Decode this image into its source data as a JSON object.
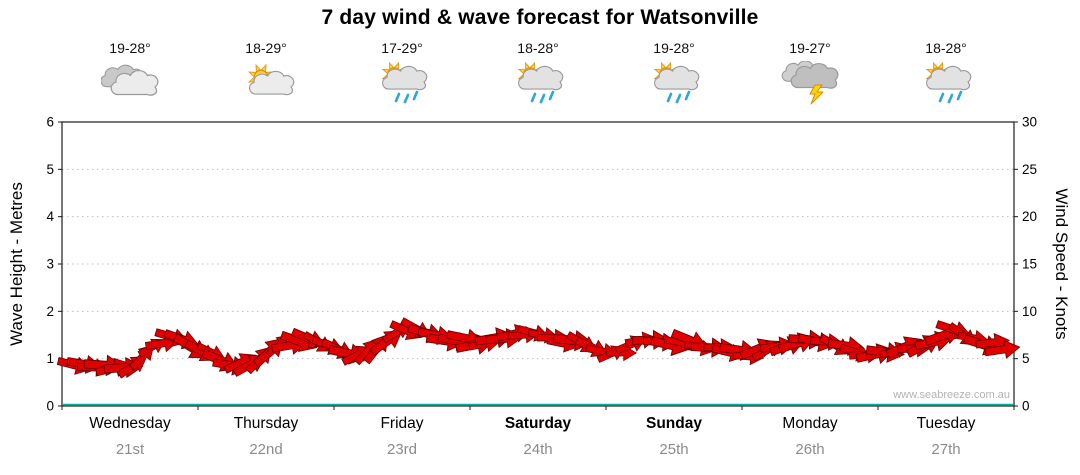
{
  "watermark": "www.seabreeze.com.au",
  "chart_data": {
    "type": "area",
    "title": "7 day wind & wave forecast for Watsonville",
    "ylabel_left": "Wave Height - Metres",
    "ylabel_right": "Wind Speed - Knots",
    "ylim_left": [
      0,
      6
    ],
    "ylim_right": [
      0,
      30
    ],
    "left_ticks": [
      0,
      1,
      2,
      3,
      4,
      5,
      6
    ],
    "right_ticks": [
      0,
      5,
      10,
      15,
      20,
      25,
      30
    ],
    "grid": "horizontal-dotted",
    "legend": "none",
    "series_color": "#e10000",
    "baseline_color": "#00b09b",
    "days": [
      {
        "name": "Wednesday",
        "date": "21st",
        "temp": "19-28°",
        "icon": "cloudy",
        "weekend": false
      },
      {
        "name": "Thursday",
        "date": "22nd",
        "temp": "18-29°",
        "icon": "partly-cloudy",
        "weekend": false
      },
      {
        "name": "Friday",
        "date": "23rd",
        "temp": "17-29°",
        "icon": "sun-showers",
        "weekend": false
      },
      {
        "name": "Saturday",
        "date": "24th",
        "temp": "18-28°",
        "icon": "sun-showers",
        "weekend": true
      },
      {
        "name": "Sunday",
        "date": "25th",
        "temp": "19-28°",
        "icon": "sun-showers",
        "weekend": true
      },
      {
        "name": "Monday",
        "date": "26th",
        "temp": "19-27°",
        "icon": "thunderstorm",
        "weekend": false
      },
      {
        "name": "Tuesday",
        "date": "27th",
        "temp": "18-28°",
        "icon": "sun-showers",
        "weekend": false
      }
    ],
    "series": [
      {
        "name": "Wind & wave",
        "unit": "metres (left axis)",
        "points_per_day": 8,
        "wave_height_m": [
          0.9,
          0.82,
          0.78,
          0.8,
          0.95,
          1.35,
          1.5,
          1.3,
          1.1,
          0.95,
          0.88,
          1.0,
          1.2,
          1.4,
          1.35,
          1.25,
          1.15,
          1.05,
          1.25,
          1.55,
          1.7,
          1.55,
          1.45,
          1.4,
          1.3,
          1.38,
          1.45,
          1.5,
          1.45,
          1.38,
          1.3,
          1.22,
          1.15,
          1.25,
          1.38,
          1.3,
          1.35,
          1.3,
          1.25,
          1.18,
          1.1,
          1.18,
          1.28,
          1.38,
          1.4,
          1.3,
          1.22,
          1.15,
          1.1,
          1.15,
          1.25,
          1.4,
          1.58,
          1.42,
          1.3,
          1.25
        ]
      }
    ]
  }
}
